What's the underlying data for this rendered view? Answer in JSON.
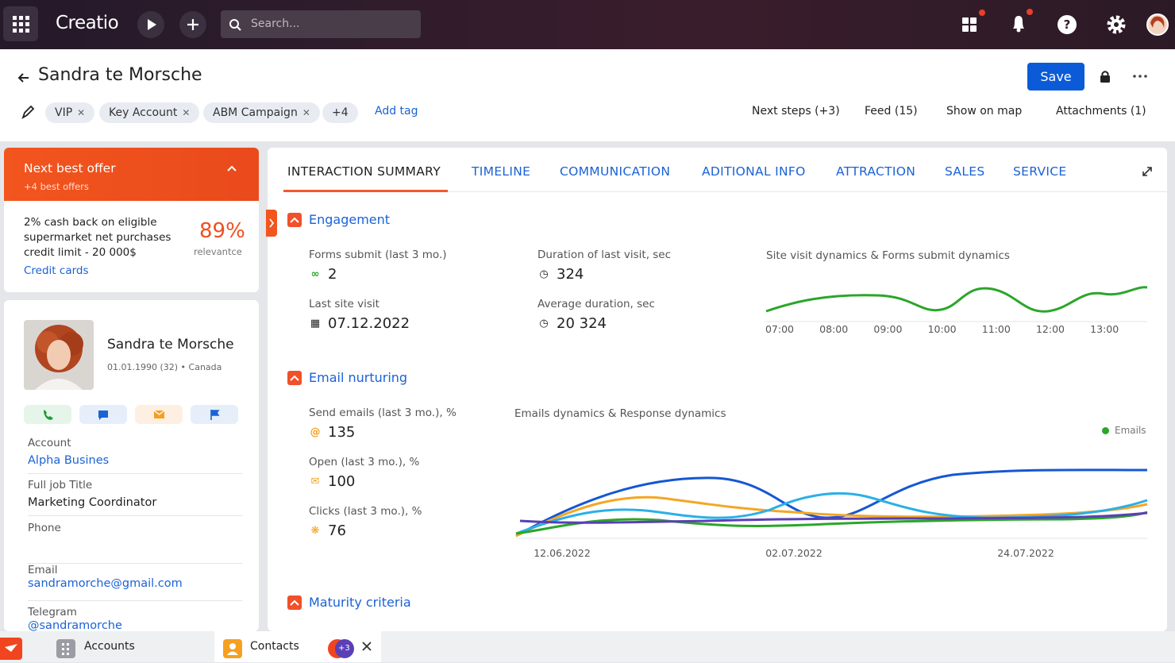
{
  "topbar": {
    "brand": "Creatio",
    "search_placeholder": "Search..."
  },
  "header": {
    "title": "Sandra te Morsche",
    "save": "Save",
    "tags": [
      "VIP",
      "Key Account",
      "ABM Campaign"
    ],
    "more_tags": "+4",
    "add_tag": "Add tag",
    "links": [
      "Next steps (+3)",
      "Feed (15)",
      "Show on map",
      "Attachments (1)"
    ]
  },
  "offer": {
    "title": "Next best offer",
    "subtitle": "+4 best offers",
    "text": "2% cash back on eligible supermarket net purchases credit limit - 20 000$",
    "percent": "89%",
    "percent_caption": "relevantce",
    "link": "Credit cards"
  },
  "profile": {
    "name": "Sandra te Morsche",
    "details": "01.01.1990 (32) • Canada",
    "fields": [
      {
        "label": "Account",
        "value": "Alpha Busines"
      },
      {
        "label": "Full job Title",
        "value": "Marketing Coordinator"
      },
      {
        "label": "Phone"
      },
      {
        "label": "Email",
        "value": "sandramorche@gmail.com"
      },
      {
        "label": "Telegram",
        "value": "@sandramorche"
      }
    ]
  },
  "tabs": [
    "INTERACTION SUMMARY",
    "TIMELINE",
    "COMMUNICATION",
    "ADITIONAL INFO",
    "ATTRACTION",
    "SALES",
    "SERVICE"
  ],
  "engagement": {
    "title": "Engagement",
    "metrics": [
      {
        "label": "Forms submit (last 3 mo.)",
        "value": 2
      },
      {
        "label": "Duration of last visit, sec",
        "value": 324
      },
      {
        "label": "Last site visit",
        "value": "07.12.2022"
      },
      {
        "label": "Average duration, sec",
        "value": "20 324"
      }
    ],
    "chart": {
      "title": "Site visit dynamics & Forms submit dynamics",
      "x_labels": [
        "07:00",
        "08:00",
        "09:00",
        "10:00",
        "11:00",
        "12:00",
        "13:00"
      ]
    }
  },
  "email": {
    "title": "Email nurturing",
    "metrics": [
      {
        "label": "Send emails (last 3 mo.), %",
        "value": 135
      },
      {
        "label": "Open (last 3 mo.), %",
        "value": 100
      },
      {
        "label": "Clicks (last 3 mo.), %",
        "value": 76
      }
    ],
    "chart": {
      "title": "Emails dynamics & Response dynamics",
      "legend": "Emails",
      "x_labels": [
        "12.06.2022",
        "02.07.2022",
        "24.07.2022"
      ]
    }
  },
  "maturity": {
    "title": "Maturity criteria"
  },
  "taskbar": {
    "items": [
      "Accounts",
      "Contacts"
    ],
    "badge": "+3"
  }
}
